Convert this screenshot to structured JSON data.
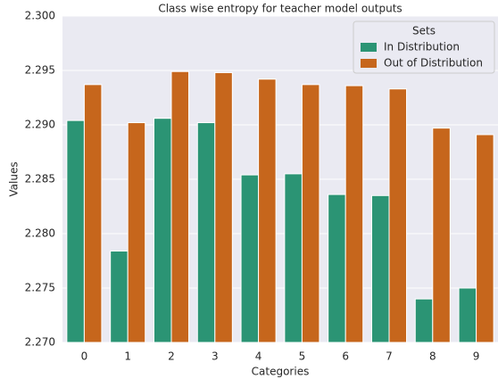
{
  "chart_data": {
    "type": "bar",
    "title": "Class wise entropy for teacher model outputs",
    "x_label": "Categories",
    "y_label": "Values",
    "categories": [
      "0",
      "1",
      "2",
      "3",
      "4",
      "5",
      "6",
      "7",
      "8",
      "9"
    ],
    "series": [
      {
        "name": "In Distribution",
        "color": "#2b9474",
        "values": [
          2.2904,
          2.2784,
          2.2906,
          2.2902,
          2.2854,
          2.2855,
          2.2836,
          2.2835,
          2.274,
          2.275
        ]
      },
      {
        "name": "Out of Distribution",
        "color": "#c6661c",
        "values": [
          2.2937,
          2.2902,
          2.2949,
          2.2948,
          2.2942,
          2.2937,
          2.2936,
          2.2933,
          2.2897,
          2.2891
        ]
      }
    ],
    "ylim": [
      2.27,
      2.3
    ],
    "yticks": [
      {
        "value": 2.27,
        "label": "2.270"
      },
      {
        "value": 2.275,
        "label": "2.275"
      },
      {
        "value": 2.28,
        "label": "2.280"
      },
      {
        "value": 2.285,
        "label": "2.285"
      },
      {
        "value": 2.29,
        "label": "2.290"
      },
      {
        "value": 2.295,
        "label": "2.295"
      },
      {
        "value": 2.3,
        "label": "2.300"
      }
    ],
    "grid": true,
    "legend": {
      "title": "Sets",
      "position": "upper right"
    }
  }
}
